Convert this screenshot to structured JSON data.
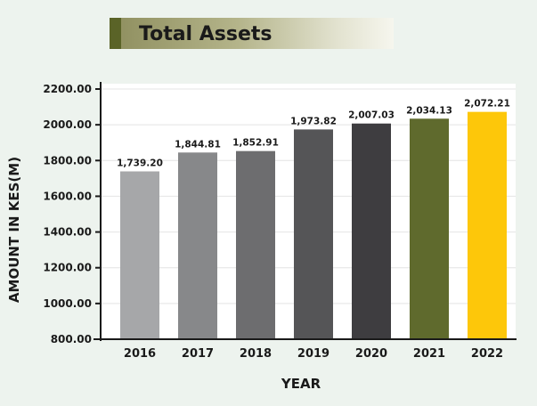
{
  "chart_data": {
    "type": "bar",
    "title": "Total Assets",
    "xlabel": "YEAR",
    "ylabel": "AMOUNT IN KES(M)",
    "categories": [
      "2016",
      "2017",
      "2018",
      "2019",
      "2020",
      "2021",
      "2022"
    ],
    "values": [
      1739.2,
      1844.81,
      1852.91,
      1973.82,
      2007.03,
      2034.13,
      2072.21
    ],
    "value_labels": [
      "1,739.20",
      "1,844.81",
      "1,852.91",
      "1,973.82",
      "2,007.03",
      "2,034.13",
      "2,072.21"
    ],
    "bar_colors": [
      "#a6a7a9",
      "#87888a",
      "#6d6d6f",
      "#555557",
      "#3e3d40",
      "#5f6a2d",
      "#fdc70a"
    ],
    "yticks": [
      800,
      1000,
      1200,
      1400,
      1600,
      1800,
      2000,
      2200
    ],
    "ytick_labels": [
      "800.00",
      "1000.00",
      "1200.00",
      "1400.00",
      "1600.00",
      "1800.00",
      "2000.00",
      "2200.00"
    ],
    "ylim": [
      800,
      2200
    ],
    "grid": true,
    "legend": "none"
  }
}
